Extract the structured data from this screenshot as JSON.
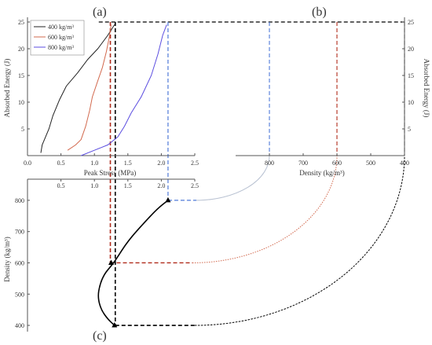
{
  "colors": {
    "d400": "#222222",
    "d600": "#d2694e",
    "d800": "#5b4de0",
    "blue_dash": "#4f79d8",
    "link_800": "#b9c2d2",
    "red_dash": "#b02a1a",
    "axis": "#555555"
  },
  "chart_data": [
    {
      "panel_label": "(a)",
      "type": "line",
      "xlabel": "Peak Stress (MPa)",
      "ylabel": "Absorbed Energy (J)",
      "xlim": [
        0,
        2.5
      ],
      "ylim": [
        0,
        25
      ],
      "xticks": [
        "0.0",
        "0.5",
        "1.0",
        "1.5",
        "2.0",
        "2.5"
      ],
      "yticks": [
        "5",
        "10",
        "15",
        "20",
        "25"
      ],
      "legend": [
        "400 kg/m³",
        "600 kg/m³",
        "800 kg/m³"
      ],
      "series": [
        {
          "name": "400 kg/m³",
          "color_key": "d400",
          "points": [
            [
              0.2,
              0.5
            ],
            [
              0.22,
              2
            ],
            [
              0.27,
              3.5
            ],
            [
              0.32,
              5
            ],
            [
              0.38,
              7.5
            ],
            [
              0.48,
              10.5
            ],
            [
              0.58,
              13
            ],
            [
              0.75,
              15.5
            ],
            [
              0.9,
              18
            ],
            [
              1.05,
              20
            ],
            [
              1.2,
              22.5
            ],
            [
              1.3,
              24.5
            ]
          ]
        },
        {
          "name": "600 kg/m³",
          "color_key": "d600",
          "points": [
            [
              0.6,
              1
            ],
            [
              0.72,
              2
            ],
            [
              0.8,
              3
            ],
            [
              0.87,
              5.5
            ],
            [
              0.93,
              8.5
            ],
            [
              0.97,
              11
            ],
            [
              1.05,
              14
            ],
            [
              1.12,
              16.5
            ],
            [
              1.18,
              19.5
            ],
            [
              1.22,
              22
            ],
            [
              1.25,
              24.5
            ]
          ]
        },
        {
          "name": "800 kg/m³",
          "color_key": "d800",
          "points": [
            [
              0.8,
              0
            ],
            [
              1.0,
              1
            ],
            [
              1.2,
              2
            ],
            [
              1.35,
              3.5
            ],
            [
              1.45,
              5.5
            ],
            [
              1.55,
              8
            ],
            [
              1.7,
              11
            ],
            [
              1.85,
              15
            ],
            [
              1.95,
              19
            ],
            [
              2.02,
              22.5
            ],
            [
              2.08,
              24.5
            ]
          ]
        }
      ]
    },
    {
      "panel_label": "(b)",
      "type": "line",
      "xlabel": "Density (kg/m³)",
      "ylabel": "Absorbed Energy (J)",
      "xlim": [
        900,
        400
      ],
      "ylim": [
        0,
        25
      ],
      "xticks": [
        "800",
        "700",
        "600",
        "500",
        "400"
      ],
      "yticks": [
        "5",
        "10",
        "15",
        "20",
        "25"
      ],
      "series": [
        {
          "density": 800,
          "energy": 25,
          "color_key": "blue_dash"
        },
        {
          "density": 600,
          "energy": 25,
          "color_key": "red_dash"
        },
        {
          "density": 400,
          "energy": 25,
          "color_key": "d400"
        }
      ]
    },
    {
      "panel_label": "(c)",
      "type": "line",
      "xlabel": "",
      "ylabel": "Density (kg/m³)",
      "xlim": [
        0,
        2.5
      ],
      "ylim": [
        380,
        850
      ],
      "xticks": [
        "0.5",
        "1.0",
        "1.5",
        "2.0",
        "2.5"
      ],
      "yticks": [
        "400",
        "500",
        "600",
        "700",
        "800"
      ],
      "series": [
        {
          "curve": [
            [
              1.3,
              400
            ],
            [
              1.2,
              420
            ],
            [
              1.1,
              450
            ],
            [
              1.05,
              490
            ],
            [
              1.08,
              530
            ],
            [
              1.15,
              565
            ],
            [
              1.25,
              590
            ],
            [
              1.32,
              610
            ],
            [
              1.5,
              670
            ],
            [
              1.75,
              730
            ],
            [
              1.95,
              775
            ],
            [
              2.1,
              800
            ]
          ],
          "markers": [
            [
              1.3,
              400
            ],
            [
              1.25,
              600
            ],
            [
              2.1,
              800
            ]
          ]
        }
      ]
    }
  ]
}
